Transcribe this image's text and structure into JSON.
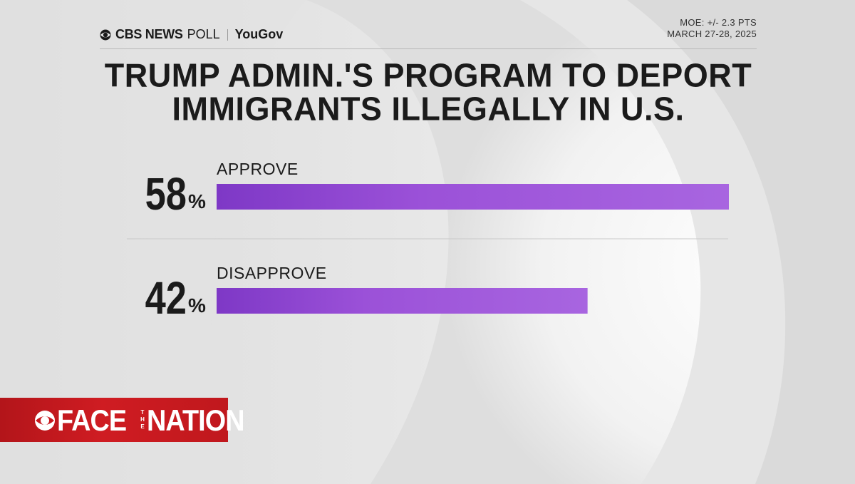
{
  "header": {
    "brand": "CBS NEWS",
    "poll_word": "POLL",
    "partner": "YouGov",
    "moe": "MOE: +/- 2.3 PTS",
    "dates": "MARCH 27-28, 2025"
  },
  "chart_data": {
    "type": "bar",
    "title_lines": [
      "TRUMP ADMIN.'S PROGRAM TO DEPORT",
      "IMMIGRANTS ILLEGALLY IN U.S."
    ],
    "categories": [
      "APPROVE",
      "DISAPPROVE"
    ],
    "values": [
      58,
      42
    ],
    "value_labels": [
      "58",
      "42"
    ],
    "unit": "%",
    "bar_color": "#9b51d8",
    "grid": false,
    "orientation": "horizontal"
  },
  "branding": {
    "show_logo_left": "FACE",
    "show_logo_middle": "THE",
    "show_logo_right": "NATION",
    "logo_color": "#c8191f"
  }
}
